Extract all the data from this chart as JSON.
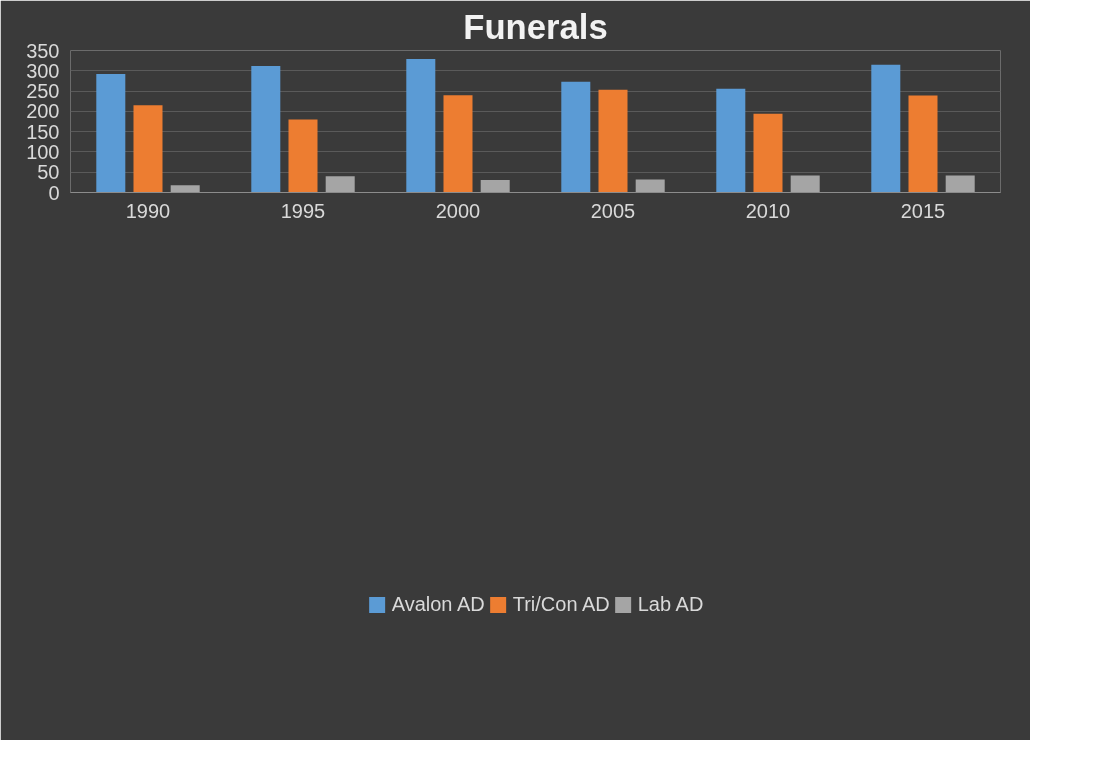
{
  "chart_data": {
    "type": "bar",
    "title": "Funerals",
    "categories": [
      "1990",
      "1995",
      "2000",
      "2005",
      "2010",
      "2015"
    ],
    "series": [
      {
        "name": "Avalon AD",
        "color": "#5b9bd5",
        "values": [
          292,
          312,
          329,
          273,
          256,
          315
        ]
      },
      {
        "name": "Tri/Con AD",
        "color": "#ed7d31",
        "values": [
          215,
          180,
          240,
          253,
          194,
          239
        ]
      },
      {
        "name": "Lab AD",
        "color": "#a5a5a5",
        "values": [
          18,
          40,
          31,
          32,
          42,
          42
        ]
      }
    ],
    "ylim": [
      0,
      350
    ],
    "yticks": [
      0,
      50,
      100,
      150,
      200,
      250,
      300,
      350
    ],
    "grid": "y",
    "legend": "bottom"
  }
}
